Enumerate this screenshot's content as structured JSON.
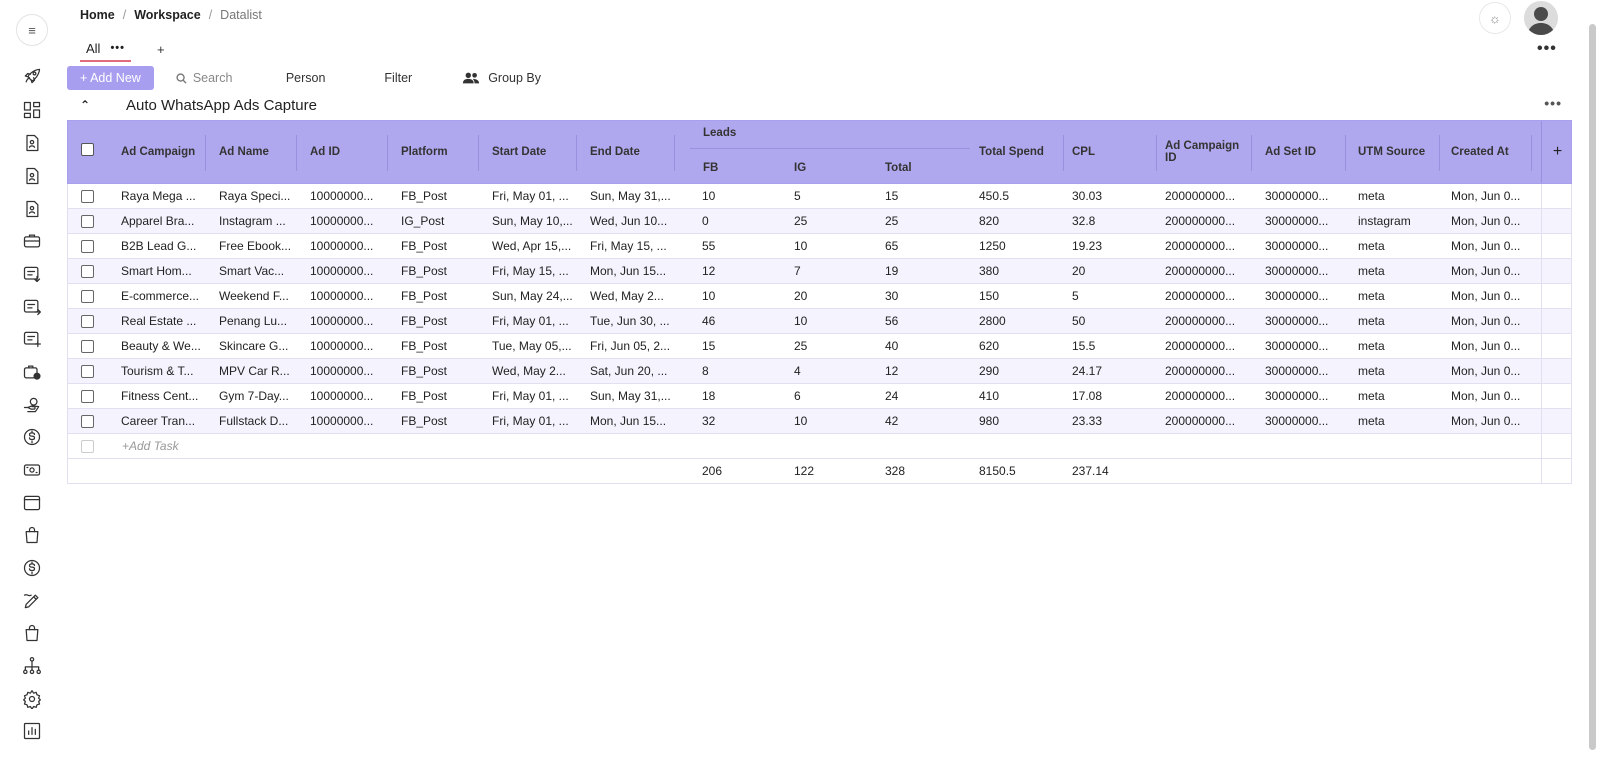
{
  "breadcrumb": {
    "home": "Home",
    "sep1": "/",
    "workspace": "Workspace",
    "sep2": "/",
    "current": "Datalist"
  },
  "tabs": {
    "all_label": "All",
    "dots": "•••",
    "add": "+"
  },
  "toolbar": {
    "add_new": "+ Add New",
    "search_placeholder": "Search",
    "person": "Person",
    "filter": "Filter",
    "group_by": "Group By"
  },
  "group": {
    "title": "Auto WhatsApp Ads Capture"
  },
  "table": {
    "columns": [
      "Ad Campaign",
      "Ad Name",
      "Ad ID",
      "Platform",
      "Start Date",
      "End Date",
      "Total Spend",
      "CPL",
      "Ad Campaign ID",
      "Ad Set ID",
      "UTM Source",
      "Created At"
    ],
    "leads_group": "Leads",
    "leads_sub": [
      "FB",
      "IG",
      "Total"
    ],
    "add_column": "+",
    "rows": [
      [
        "Raya Mega ...",
        "Raya Speci...",
        "10000000...",
        "FB_Post",
        "Fri, May 01, ...",
        "Sun, May 31,...",
        "10",
        "5",
        "15",
        "450.5",
        "30.03",
        "200000000...",
        "30000000...",
        "meta",
        "Mon, Jun 0..."
      ],
      [
        "Apparel Bra...",
        "Instagram ...",
        "10000000...",
        "IG_Post",
        "Sun, May 10,...",
        "Wed, Jun 10...",
        "0",
        "25",
        "25",
        "820",
        "32.8",
        "200000000...",
        "30000000...",
        "instagram",
        "Mon, Jun 0..."
      ],
      [
        "B2B Lead G...",
        "Free Ebook...",
        "10000000...",
        "FB_Post",
        "Wed, Apr 15,...",
        "Fri, May 15, ...",
        "55",
        "10",
        "65",
        "1250",
        "19.23",
        "200000000...",
        "30000000...",
        "meta",
        "Mon, Jun 0..."
      ],
      [
        "Smart Hom...",
        "Smart Vac...",
        "10000000...",
        "FB_Post",
        "Fri, May 15, ...",
        "Mon, Jun 15...",
        "12",
        "7",
        "19",
        "380",
        "20",
        "200000000...",
        "30000000...",
        "meta",
        "Mon, Jun 0..."
      ],
      [
        "E-commerce...",
        "Weekend F...",
        "10000000...",
        "FB_Post",
        "Sun, May 24,...",
        "Wed, May 2...",
        "10",
        "20",
        "30",
        "150",
        "5",
        "200000000...",
        "30000000...",
        "meta",
        "Mon, Jun 0..."
      ],
      [
        "Real Estate ...",
        "Penang Lu...",
        "10000000...",
        "FB_Post",
        "Fri, May 01, ...",
        "Tue, Jun 30, ...",
        "46",
        "10",
        "56",
        "2800",
        "50",
        "200000000...",
        "30000000...",
        "meta",
        "Mon, Jun 0..."
      ],
      [
        "Beauty & We...",
        "Skincare G...",
        "10000000...",
        "FB_Post",
        "Tue, May 05,...",
        "Fri, Jun 05, 2...",
        "15",
        "25",
        "40",
        "620",
        "15.5",
        "200000000...",
        "30000000...",
        "meta",
        "Mon, Jun 0..."
      ],
      [
        "Tourism & T...",
        "MPV Car R...",
        "10000000...",
        "FB_Post",
        "Wed, May 2...",
        "Sat, Jun 20, ...",
        "8",
        "4",
        "12",
        "290",
        "24.17",
        "200000000...",
        "30000000...",
        "meta",
        "Mon, Jun 0..."
      ],
      [
        "Fitness Cent...",
        "Gym 7-Day...",
        "10000000...",
        "FB_Post",
        "Fri, May 01, ...",
        "Sun, May 31,...",
        "18",
        "6",
        "24",
        "410",
        "17.08",
        "200000000...",
        "30000000...",
        "meta",
        "Mon, Jun 0..."
      ],
      [
        "Career Tran...",
        "Fullstack D...",
        "10000000...",
        "FB_Post",
        "Fri, May 01, ...",
        "Mon, Jun 15...",
        "32",
        "10",
        "42",
        "980",
        "23.33",
        "200000000...",
        "30000000...",
        "meta",
        "Mon, Jun 0..."
      ]
    ],
    "add_task": "+Add Task",
    "totals": {
      "fb": "206",
      "ig": "122",
      "total": "328",
      "spend": "8150.5",
      "cpl": "237.14"
    }
  },
  "icons": {
    "menu": "menu-icon",
    "sun": "sun-icon",
    "sidebar": [
      "rocket-icon",
      "dashboard-grid-icon",
      "contact-card-icon",
      "contact-card-icon",
      "contact-card-icon",
      "briefcase-icon",
      "list-download-icon",
      "list-export-icon",
      "list-add-icon",
      "briefcase-clock-icon",
      "hand-coin-icon",
      "dollar-circle-icon",
      "cash-icon",
      "window-icon",
      "shopping-bag-icon",
      "dollar-circle-icon",
      "pen-tool-icon",
      "shopping-bag-icon",
      "org-chart-icon",
      "settings-gear-icon",
      "bar-chart-icon"
    ]
  },
  "colors": {
    "accent": "#a79ef0",
    "header_bg": "#b0a8ef",
    "tab_underline": "#e06a7e",
    "row_alt": "#f5f3fd"
  }
}
